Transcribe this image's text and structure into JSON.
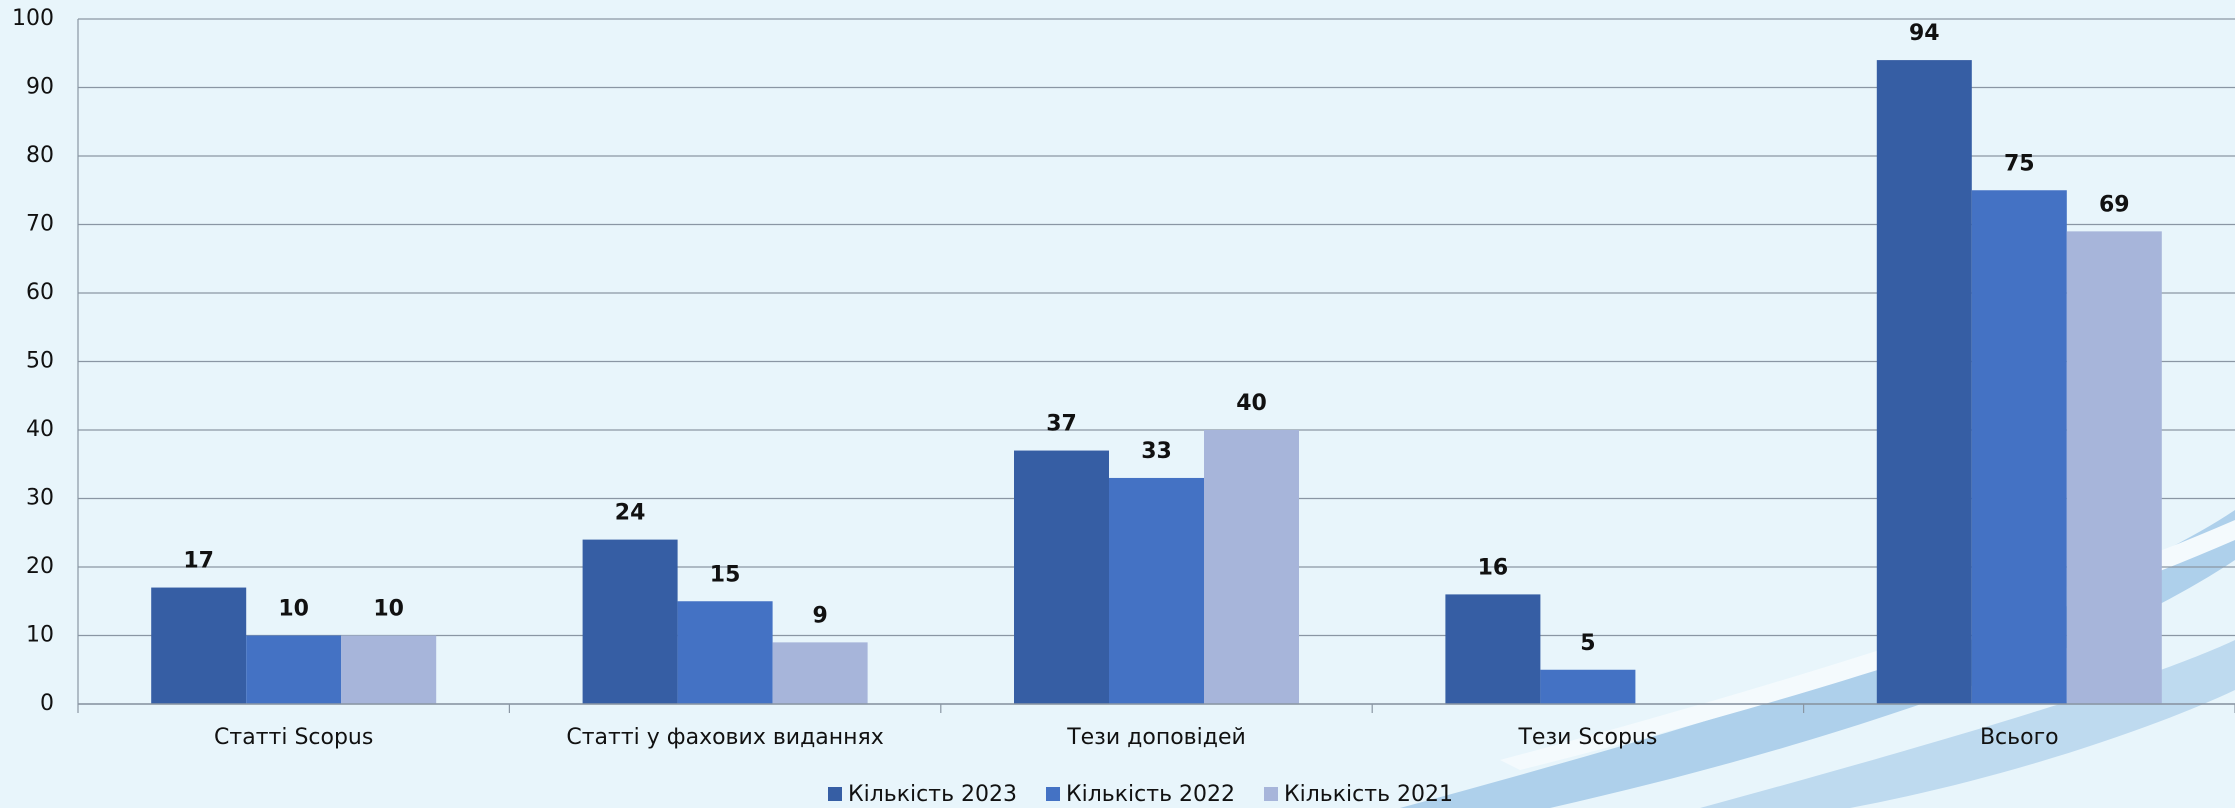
{
  "chart_data": {
    "type": "bar",
    "categories": [
      "Статті Scopus",
      "Статті у фахових виданнях",
      "Тези доповідей",
      "Тези Scopus",
      "Всього"
    ],
    "series": [
      {
        "name": "Кількість 2023",
        "color": "#365ea4",
        "values": [
          17,
          24,
          37,
          16,
          94
        ]
      },
      {
        "name": "Кількість 2022",
        "color": "#4472c4",
        "values": [
          10,
          15,
          33,
          5,
          75
        ]
      },
      {
        "name": "Кількість 2021",
        "color": "#a7b5da",
        "values": [
          10,
          9,
          40,
          null,
          69
        ]
      }
    ],
    "ylim": [
      0,
      100
    ],
    "yticks": [
      0,
      10,
      20,
      30,
      40,
      50,
      60,
      70,
      80,
      90,
      100
    ],
    "grid": true,
    "legend": "bottom"
  }
}
